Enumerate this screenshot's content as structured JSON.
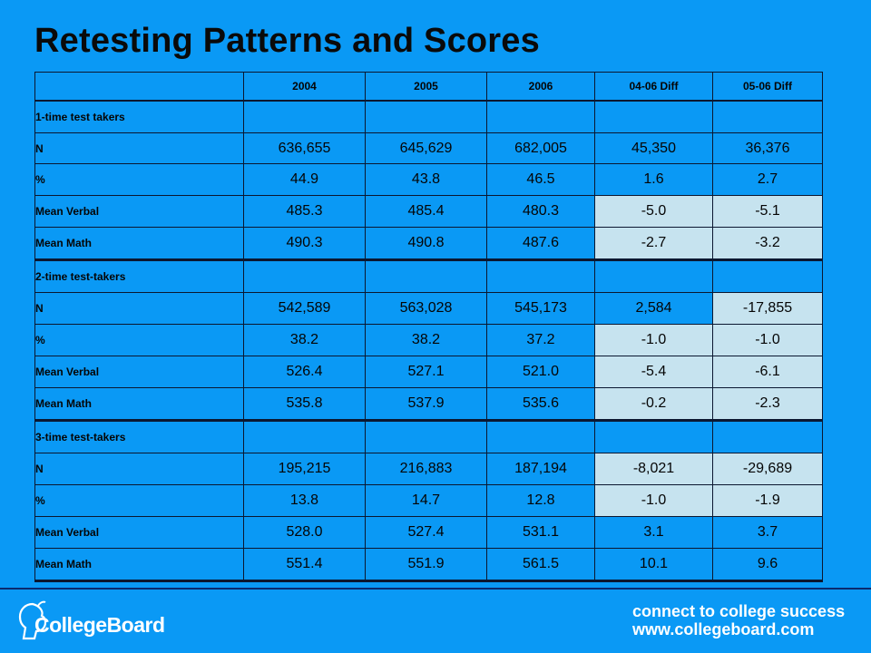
{
  "title": "Retesting Patterns and Scores",
  "table": {
    "headers": [
      "",
      "2004",
      "2005",
      "2006",
      "04-06 Diff",
      "05-06 Diff"
    ],
    "sections": [
      {
        "label": "1-time test takers",
        "rows": [
          {
            "label": "N",
            "values": [
              "636,655",
              "645,629",
              "682,005",
              "45,350",
              "36,376"
            ],
            "highlight": [
              false,
              false,
              false,
              false,
              false
            ]
          },
          {
            "label": "%",
            "values": [
              "44.9",
              "43.8",
              "46.5",
              "1.6",
              "2.7"
            ],
            "highlight": [
              false,
              false,
              false,
              false,
              false
            ]
          },
          {
            "label": "Mean Verbal",
            "values": [
              "485.3",
              "485.4",
              "480.3",
              "-5.0",
              "-5.1"
            ],
            "highlight": [
              false,
              false,
              false,
              true,
              true
            ]
          },
          {
            "label": "Mean Math",
            "values": [
              "490.3",
              "490.8",
              "487.6",
              "-2.7",
              "-3.2"
            ],
            "highlight": [
              false,
              false,
              false,
              true,
              true
            ]
          }
        ]
      },
      {
        "label": "2-time test-takers",
        "rows": [
          {
            "label": "N",
            "values": [
              "542,589",
              "563,028",
              "545,173",
              "2,584",
              "-17,855"
            ],
            "highlight": [
              false,
              false,
              false,
              false,
              true
            ]
          },
          {
            "label": "%",
            "values": [
              "38.2",
              "38.2",
              "37.2",
              "-1.0",
              "-1.0"
            ],
            "highlight": [
              false,
              false,
              false,
              true,
              true
            ]
          },
          {
            "label": "Mean Verbal",
            "values": [
              "526.4",
              "527.1",
              "521.0",
              "-5.4",
              "-6.1"
            ],
            "highlight": [
              false,
              false,
              false,
              true,
              true
            ]
          },
          {
            "label": "Mean Math",
            "values": [
              "535.8",
              "537.9",
              "535.6",
              "-0.2",
              "-2.3"
            ],
            "highlight": [
              false,
              false,
              false,
              true,
              true
            ]
          }
        ]
      },
      {
        "label": "3-time test-takers",
        "rows": [
          {
            "label": "N",
            "values": [
              "195,215",
              "216,883",
              "187,194",
              "-8,021",
              "-29,689"
            ],
            "highlight": [
              false,
              false,
              false,
              true,
              true
            ]
          },
          {
            "label": "%",
            "values": [
              "13.8",
              "14.7",
              "12.8",
              "-1.0",
              "-1.9"
            ],
            "highlight": [
              false,
              false,
              false,
              true,
              true
            ]
          },
          {
            "label": "Mean Verbal",
            "values": [
              "528.0",
              "527.4",
              "531.1",
              "3.1",
              "3.7"
            ],
            "highlight": [
              false,
              false,
              false,
              false,
              false
            ]
          },
          {
            "label": "Mean Math",
            "values": [
              "551.4",
              "551.9",
              "561.5",
              "10.1",
              "9.6"
            ],
            "highlight": [
              false,
              false,
              false,
              false,
              false
            ]
          }
        ]
      }
    ]
  },
  "footer": {
    "brand": "CollegeBoard",
    "tagline_line1": "connect to college success",
    "tagline_line2": "www.collegeboard.com",
    "logo_icon": "acorn-head-logo-icon"
  },
  "colors": {
    "background": "#0a99f5",
    "negative_cell": "#c6e3ef",
    "grid_line": "#0b1730"
  }
}
